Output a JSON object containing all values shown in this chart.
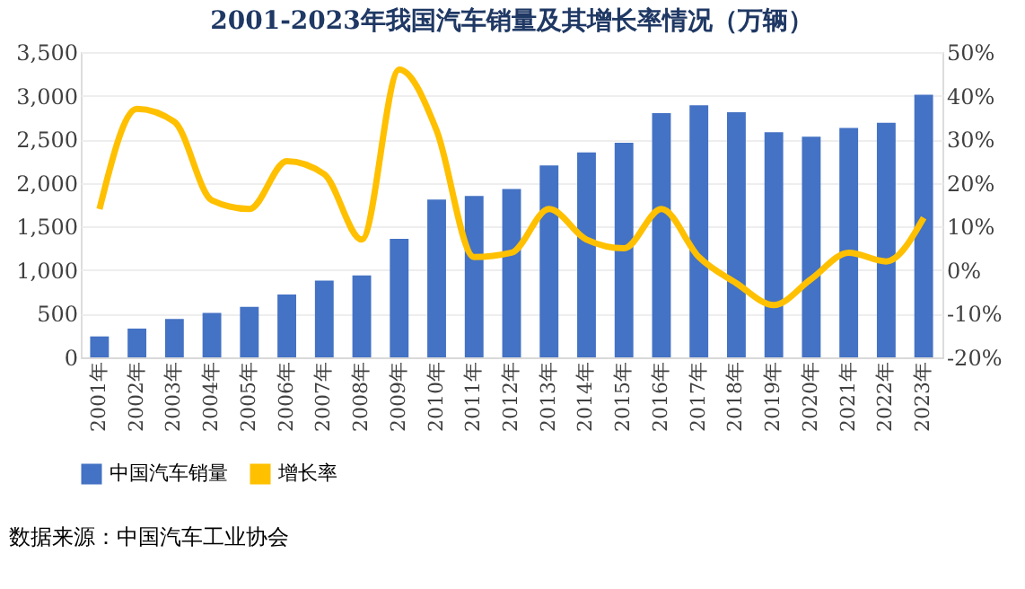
{
  "chart_data": {
    "type": "bar",
    "title": "2001-2023年我国汽车销量及其增长率情况（万辆）",
    "categories": [
      "2001年",
      "2002年",
      "2003年",
      "2004年",
      "2005年",
      "2006年",
      "2007年",
      "2008年",
      "2009年",
      "2010年",
      "2011年",
      "2012年",
      "2013年",
      "2014年",
      "2015年",
      "2016年",
      "2017年",
      "2018年",
      "2019年",
      "2020年",
      "2021年",
      "2022年",
      "2023年"
    ],
    "series": [
      {
        "name": "中国汽车销量",
        "color": "#4472c4",
        "values": [
          240,
          330,
          440,
          510,
          580,
          720,
          880,
          940,
          1360,
          1810,
          1850,
          1930,
          2200,
          2350,
          2460,
          2800,
          2890,
          2810,
          2580,
          2530,
          2630,
          2690,
          3010
        ]
      },
      {
        "name": "增长率",
        "type": "line",
        "axis": "y2",
        "color": "#ffc000",
        "values": [
          14,
          37,
          34,
          16,
          14,
          25,
          22,
          7,
          46,
          32,
          3,
          4,
          14,
          7,
          5,
          14,
          3,
          -3,
          -8,
          -2,
          4,
          2,
          12
        ]
      }
    ],
    "ylim": [
      0,
      3500
    ],
    "yticks": [
      0,
      500,
      {
        "value": 1000,
        "label": "1,000"
      },
      {
        "value": 1500,
        "label": "1,500"
      },
      {
        "value": 2000,
        "label": "2,000"
      },
      {
        "value": 2500,
        "label": "2,500"
      },
      {
        "value": 3000,
        "label": "3,000"
      },
      {
        "value": 3500,
        "label": "3,500"
      }
    ],
    "y2lim": [
      -20,
      50
    ],
    "y2ticks": [
      {
        "value": -20,
        "label": "-20%"
      },
      {
        "value": -10,
        "label": "-10%"
      },
      {
        "value": 0,
        "label": "0%"
      },
      {
        "value": 10,
        "label": "10%"
      },
      {
        "value": 20,
        "label": "20%"
      },
      {
        "value": 30,
        "label": "30%"
      },
      {
        "value": 40,
        "label": "40%"
      },
      {
        "value": 50,
        "label": "50%"
      }
    ],
    "grid": "y",
    "legend": "bottom",
    "annotations": [
      "数据来源：中国汽车工业协会"
    ]
  }
}
